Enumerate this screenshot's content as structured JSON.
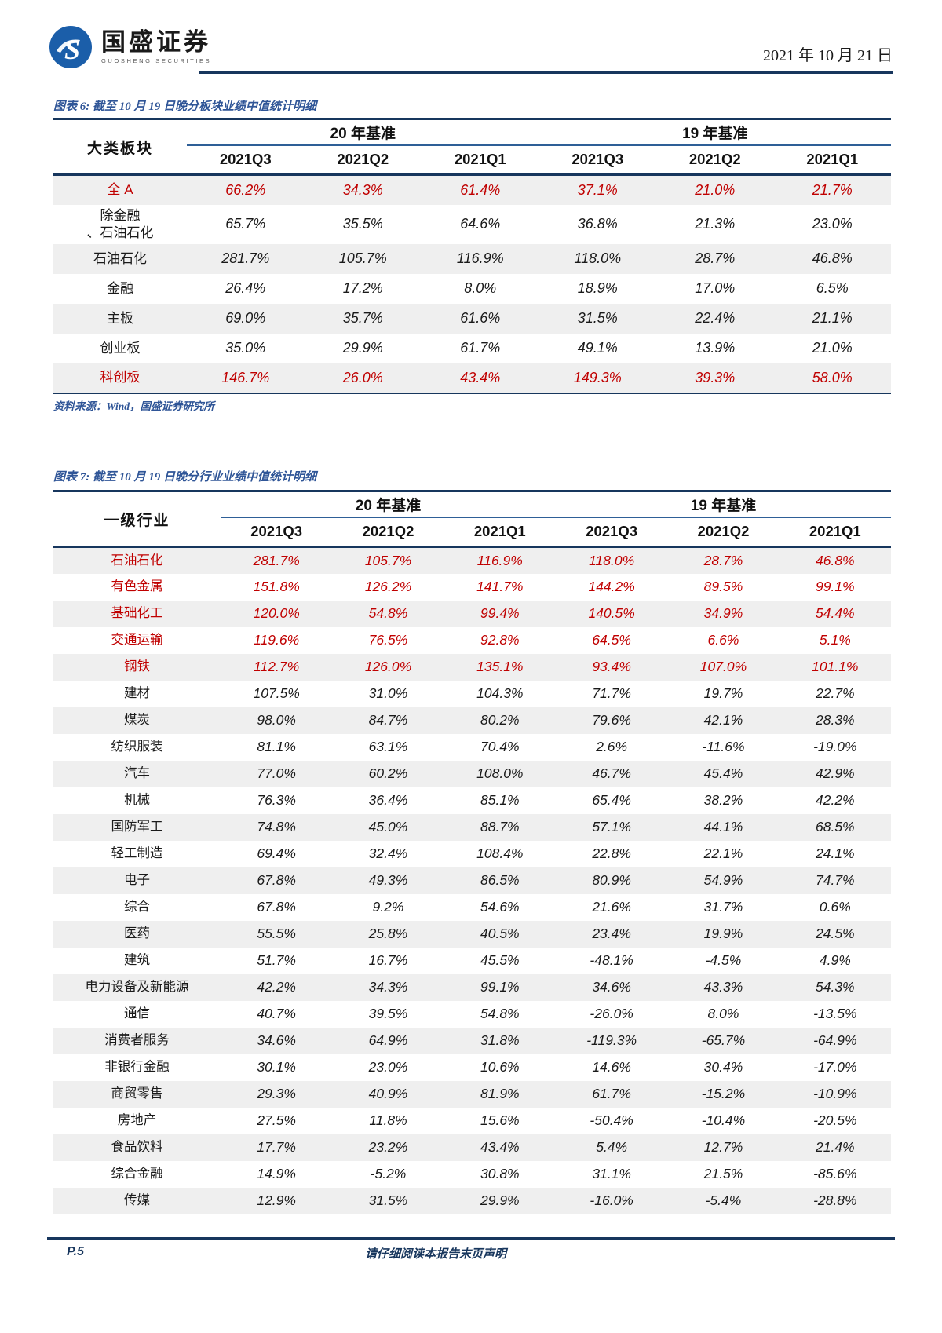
{
  "colors": {
    "navy": "#17365D",
    "blue": "#2F5597",
    "red": "#C00000",
    "shade": "#EFEFEF",
    "logo": "#1B5EA9"
  },
  "header": {
    "brand_cn": "国盛证券",
    "brand_en": "GUOSHENG SECURITIES",
    "date": "2021 年 10 月 21 日"
  },
  "figure6": {
    "title": "图表 6: 截至 10 月 19 日晚分板块业绩中值统计明细",
    "row_header": "大类板块",
    "groups": [
      "20 年基准",
      "19 年基准"
    ],
    "columns": [
      "2021Q3",
      "2021Q2",
      "2021Q1",
      "2021Q3",
      "2021Q2",
      "2021Q1"
    ],
    "rows": [
      {
        "label": "全 A",
        "highlight": true,
        "values": [
          "66.2%",
          "34.3%",
          "61.4%",
          "37.1%",
          "21.0%",
          "21.7%"
        ]
      },
      {
        "label": "除金融\n、石油石化",
        "highlight": false,
        "values": [
          "65.7%",
          "35.5%",
          "64.6%",
          "36.8%",
          "21.3%",
          "23.0%"
        ]
      },
      {
        "label": "石油石化",
        "highlight": false,
        "values": [
          "281.7%",
          "105.7%",
          "116.9%",
          "118.0%",
          "28.7%",
          "46.8%"
        ]
      },
      {
        "label": "金融",
        "highlight": false,
        "values": [
          "26.4%",
          "17.2%",
          "8.0%",
          "18.9%",
          "17.0%",
          "6.5%"
        ]
      },
      {
        "label": "主板",
        "highlight": false,
        "values": [
          "69.0%",
          "35.7%",
          "61.6%",
          "31.5%",
          "22.4%",
          "21.1%"
        ]
      },
      {
        "label": "创业板",
        "highlight": false,
        "values": [
          "35.0%",
          "29.9%",
          "61.7%",
          "49.1%",
          "13.9%",
          "21.0%"
        ]
      },
      {
        "label": "科创板",
        "highlight": true,
        "values": [
          "146.7%",
          "26.0%",
          "43.4%",
          "149.3%",
          "39.3%",
          "58.0%"
        ]
      }
    ],
    "source": "资料来源：Wind，国盛证券研究所"
  },
  "figure7": {
    "title": "图表 7: 截至 10 月 19 日晚分行业业绩中值统计明细",
    "row_header": "一级行业",
    "groups": [
      "20 年基准",
      "19 年基准"
    ],
    "columns": [
      "2021Q3",
      "2021Q2",
      "2021Q1",
      "2021Q3",
      "2021Q2",
      "2021Q1"
    ],
    "rows": [
      {
        "label": "石油石化",
        "highlight": true,
        "values": [
          "281.7%",
          "105.7%",
          "116.9%",
          "118.0%",
          "28.7%",
          "46.8%"
        ]
      },
      {
        "label": "有色金属",
        "highlight": true,
        "values": [
          "151.8%",
          "126.2%",
          "141.7%",
          "144.2%",
          "89.5%",
          "99.1%"
        ]
      },
      {
        "label": "基础化工",
        "highlight": true,
        "values": [
          "120.0%",
          "54.8%",
          "99.4%",
          "140.5%",
          "34.9%",
          "54.4%"
        ]
      },
      {
        "label": "交通运输",
        "highlight": true,
        "values": [
          "119.6%",
          "76.5%",
          "92.8%",
          "64.5%",
          "6.6%",
          "5.1%"
        ]
      },
      {
        "label": "钢铁",
        "highlight": true,
        "values": [
          "112.7%",
          "126.0%",
          "135.1%",
          "93.4%",
          "107.0%",
          "101.1%"
        ]
      },
      {
        "label": "建材",
        "highlight": false,
        "values": [
          "107.5%",
          "31.0%",
          "104.3%",
          "71.7%",
          "19.7%",
          "22.7%"
        ]
      },
      {
        "label": "煤炭",
        "highlight": false,
        "values": [
          "98.0%",
          "84.7%",
          "80.2%",
          "79.6%",
          "42.1%",
          "28.3%"
        ]
      },
      {
        "label": "纺织服装",
        "highlight": false,
        "values": [
          "81.1%",
          "63.1%",
          "70.4%",
          "2.6%",
          "-11.6%",
          "-19.0%"
        ]
      },
      {
        "label": "汽车",
        "highlight": false,
        "values": [
          "77.0%",
          "60.2%",
          "108.0%",
          "46.7%",
          "45.4%",
          "42.9%"
        ]
      },
      {
        "label": "机械",
        "highlight": false,
        "values": [
          "76.3%",
          "36.4%",
          "85.1%",
          "65.4%",
          "38.2%",
          "42.2%"
        ]
      },
      {
        "label": "国防军工",
        "highlight": false,
        "values": [
          "74.8%",
          "45.0%",
          "88.7%",
          "57.1%",
          "44.1%",
          "68.5%"
        ]
      },
      {
        "label": "轻工制造",
        "highlight": false,
        "values": [
          "69.4%",
          "32.4%",
          "108.4%",
          "22.8%",
          "22.1%",
          "24.1%"
        ]
      },
      {
        "label": "电子",
        "highlight": false,
        "values": [
          "67.8%",
          "49.3%",
          "86.5%",
          "80.9%",
          "54.9%",
          "74.7%"
        ]
      },
      {
        "label": "综合",
        "highlight": false,
        "values": [
          "67.8%",
          "9.2%",
          "54.6%",
          "21.6%",
          "31.7%",
          "0.6%"
        ]
      },
      {
        "label": "医药",
        "highlight": false,
        "values": [
          "55.5%",
          "25.8%",
          "40.5%",
          "23.4%",
          "19.9%",
          "24.5%"
        ]
      },
      {
        "label": "建筑",
        "highlight": false,
        "values": [
          "51.7%",
          "16.7%",
          "45.5%",
          "-48.1%",
          "-4.5%",
          "4.9%"
        ]
      },
      {
        "label": "电力设备及新能源",
        "highlight": false,
        "values": [
          "42.2%",
          "34.3%",
          "99.1%",
          "34.6%",
          "43.3%",
          "54.3%"
        ]
      },
      {
        "label": "通信",
        "highlight": false,
        "values": [
          "40.7%",
          "39.5%",
          "54.8%",
          "-26.0%",
          "8.0%",
          "-13.5%"
        ]
      },
      {
        "label": "消费者服务",
        "highlight": false,
        "values": [
          "34.6%",
          "64.9%",
          "31.8%",
          "-119.3%",
          "-65.7%",
          "-64.9%"
        ]
      },
      {
        "label": "非银行金融",
        "highlight": false,
        "values": [
          "30.1%",
          "23.0%",
          "10.6%",
          "14.6%",
          "30.4%",
          "-17.0%"
        ]
      },
      {
        "label": "商贸零售",
        "highlight": false,
        "values": [
          "29.3%",
          "40.9%",
          "81.9%",
          "61.7%",
          "-15.2%",
          "-10.9%"
        ]
      },
      {
        "label": "房地产",
        "highlight": false,
        "values": [
          "27.5%",
          "11.8%",
          "15.6%",
          "-50.4%",
          "-10.4%",
          "-20.5%"
        ]
      },
      {
        "label": "食品饮料",
        "highlight": false,
        "values": [
          "17.7%",
          "23.2%",
          "43.4%",
          "5.4%",
          "12.7%",
          "21.4%"
        ]
      },
      {
        "label": "综合金融",
        "highlight": false,
        "values": [
          "14.9%",
          "-5.2%",
          "30.8%",
          "31.1%",
          "21.5%",
          "-85.6%"
        ]
      },
      {
        "label": "传媒",
        "highlight": false,
        "values": [
          "12.9%",
          "31.5%",
          "29.9%",
          "-16.0%",
          "-5.4%",
          "-28.8%"
        ]
      }
    ]
  },
  "footer": {
    "page_label": "P.5",
    "disclaimer": "请仔细阅读本报告末页声明"
  }
}
